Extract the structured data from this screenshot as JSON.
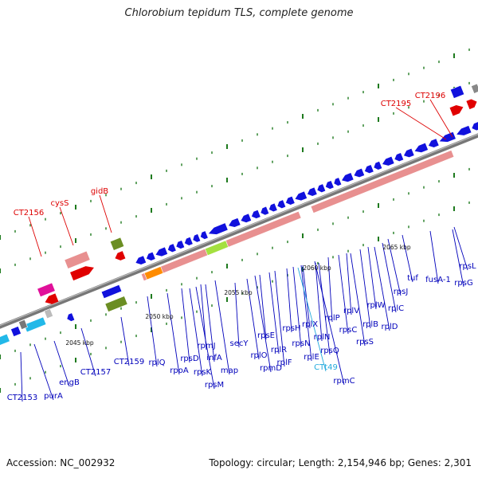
{
  "title": "Chlorobium tepidum TLS, complete genome",
  "footer": {
    "accession": "Accession: NC_002932",
    "topology": "Topology: circular; Length: 2,154,946 bp; Genes: 2,301"
  },
  "colors": {
    "backbone": "#8a8a8a",
    "gene_blue": "#1111dd",
    "gene_red": "#e00000",
    "rrna_salmon": "#e89090",
    "gene_olive": "#6b8e23",
    "gene_magenta": "#e0109a",
    "gene_cyan": "#22b8e8",
    "gene_orange": "#ff8c00",
    "gene_lime": "#a4e040",
    "tick_green": "#1e7a1e",
    "label_blue": "#0000bb",
    "label_red": "#dd0000",
    "label_cyan": "#22aadd"
  },
  "scale_labels": [
    "2045 kbp",
    "2050 kbp",
    "2055 kbp",
    "2060 kbp",
    "2065 kbp"
  ],
  "gene_labels": [
    {
      "text": "CT2196",
      "color": "red"
    },
    {
      "text": "CT2195",
      "color": "red"
    },
    {
      "text": "gidB",
      "color": "red"
    },
    {
      "text": "cysS",
      "color": "red"
    },
    {
      "text": "CT2156",
      "color": "red"
    },
    {
      "text": "rpsL",
      "color": "blue"
    },
    {
      "text": "rpsG",
      "color": "blue"
    },
    {
      "text": "fusA-1",
      "color": "blue"
    },
    {
      "text": "tuf",
      "color": "blue"
    },
    {
      "text": "rpsJ",
      "color": "blue"
    },
    {
      "text": "rplC",
      "color": "blue"
    },
    {
      "text": "rplW",
      "color": "blue"
    },
    {
      "text": "rplD",
      "color": "blue"
    },
    {
      "text": "rplB",
      "color": "blue"
    },
    {
      "text": "rplV",
      "color": "blue"
    },
    {
      "text": "rpsS",
      "color": "blue"
    },
    {
      "text": "rpsC",
      "color": "blue"
    },
    {
      "text": "rplP",
      "color": "blue"
    },
    {
      "text": "rplX",
      "color": "blue"
    },
    {
      "text": "rplN",
      "color": "blue"
    },
    {
      "text": "rpsQ",
      "color": "blue"
    },
    {
      "text": "rpsH",
      "color": "blue"
    },
    {
      "text": "rplE",
      "color": "blue"
    },
    {
      "text": "rpmC",
      "color": "blue"
    },
    {
      "text": "CTt49",
      "color": "cyan"
    },
    {
      "text": "rpsN",
      "color": "blue"
    },
    {
      "text": "rplF",
      "color": "blue"
    },
    {
      "text": "rplR",
      "color": "blue"
    },
    {
      "text": "rpsE",
      "color": "blue"
    },
    {
      "text": "rpmD",
      "color": "blue"
    },
    {
      "text": "rplO",
      "color": "blue"
    },
    {
      "text": "secY",
      "color": "blue"
    },
    {
      "text": "map",
      "color": "blue"
    },
    {
      "text": "rpmJ",
      "color": "blue"
    },
    {
      "text": "infA",
      "color": "blue"
    },
    {
      "text": "rpsM",
      "color": "blue"
    },
    {
      "text": "rpsK",
      "color": "blue"
    },
    {
      "text": "rpsD",
      "color": "blue"
    },
    {
      "text": "rpoA",
      "color": "blue"
    },
    {
      "text": "rplQ",
      "color": "blue"
    },
    {
      "text": "CT2159",
      "color": "blue"
    },
    {
      "text": "CT2157",
      "color": "blue"
    },
    {
      "text": "engB",
      "color": "blue"
    },
    {
      "text": "purA",
      "color": "blue"
    },
    {
      "text": "CT2153",
      "color": "blue"
    }
  ]
}
